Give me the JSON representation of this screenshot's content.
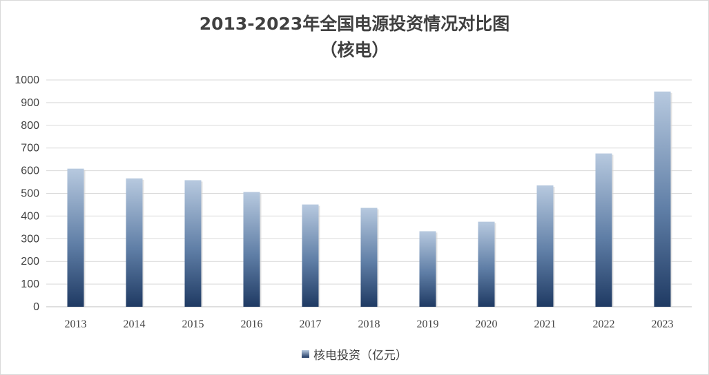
{
  "chart_data": {
    "type": "bar",
    "title": "2013-2023年全国电源投资情况对比图",
    "subtitle": "（核电）",
    "categories": [
      "2013",
      "2014",
      "2015",
      "2016",
      "2017",
      "2018",
      "2019",
      "2020",
      "2021",
      "2022",
      "2023"
    ],
    "series": [
      {
        "name": "核电投资（亿元）",
        "values": [
          609,
          566,
          558,
          506,
          451,
          436,
          333,
          375,
          535,
          676,
          949
        ]
      }
    ],
    "ylim": [
      0,
      1000
    ],
    "yticks": [
      0,
      100,
      200,
      300,
      400,
      500,
      600,
      700,
      800,
      900,
      1000
    ],
    "grid": true,
    "legend_position": "bottom",
    "colors": {
      "bar_top": "#b7c9df",
      "bar_bottom": "#1f3a63",
      "grid": "#d9d9d9",
      "text": "#404040"
    }
  }
}
